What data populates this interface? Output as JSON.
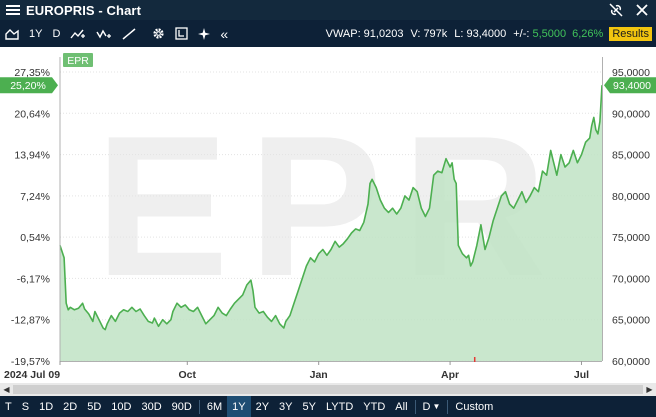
{
  "window": {
    "title": "EUROPRIS - Chart"
  },
  "toolbar": {
    "period_label": "1Y",
    "interval_label": "D",
    "stats": {
      "vwap_label": "VWAP:",
      "vwap_value": "91,0203",
      "volume_label": "V:",
      "volume_value": "797k",
      "last_label": "L:",
      "last_value": "93,4000",
      "change_label": "+/-:",
      "change_value": "5,5000",
      "change_pct": "6,26%",
      "results_label": "Results"
    }
  },
  "chart_data": {
    "type": "area",
    "series_badge": "EPR",
    "watermark": "EPR",
    "left_axis_ticks": [
      "27,35%",
      "20,64%",
      "13,94%",
      "7,24%",
      "0,54%",
      "-6,17%",
      "-12,87%",
      "-19,57%"
    ],
    "right_axis_ticks": [
      "95,0000",
      "90,0000",
      "85,0000",
      "80,0000",
      "75,0000",
      "70,0000",
      "65,0000",
      "60,0000"
    ],
    "ylim": [
      60,
      95
    ],
    "x_labels": [
      "2024 Jul 09",
      "Oct",
      "Jan",
      "Apr",
      "Jul"
    ],
    "current_pct_label": "25,20%",
    "current_price_label": "93,4000",
    "current_price": 93.4,
    "colors": {
      "line": "#4caf50",
      "fill": "#bfe3c4",
      "marker": "#4caf50"
    },
    "price_points": [
      [
        0,
        74.0
      ],
      [
        2,
        72.5
      ],
      [
        3,
        67.0
      ],
      [
        4,
        66.2
      ],
      [
        5,
        66.5
      ],
      [
        7,
        66.2
      ],
      [
        9,
        66.4
      ],
      [
        11,
        67.0
      ],
      [
        12,
        66.3
      ],
      [
        14,
        65.7
      ],
      [
        16,
        64.8
      ],
      [
        17,
        66.0
      ],
      [
        19,
        65.0
      ],
      [
        21,
        64.0
      ],
      [
        22,
        63.8
      ],
      [
        23,
        64.5
      ],
      [
        25,
        65.5
      ],
      [
        27,
        64.8
      ],
      [
        29,
        65.8
      ],
      [
        31,
        66.2
      ],
      [
        33,
        66.0
      ],
      [
        35,
        66.5
      ],
      [
        37,
        66.0
      ],
      [
        39,
        66.3
      ],
      [
        41,
        65.5
      ],
      [
        43,
        64.8
      ],
      [
        45,
        64.6
      ],
      [
        46,
        65.2
      ],
      [
        48,
        64.2
      ],
      [
        50,
        65.0
      ],
      [
        52,
        64.5
      ],
      [
        54,
        65.0
      ],
      [
        55,
        66.0
      ],
      [
        57,
        67.0
      ],
      [
        59,
        66.5
      ],
      [
        61,
        66.8
      ],
      [
        63,
        66.2
      ],
      [
        65,
        66.0
      ],
      [
        67,
        66.5
      ],
      [
        69,
        65.5
      ],
      [
        71,
        64.5
      ],
      [
        73,
        65.0
      ],
      [
        75,
        65.5
      ],
      [
        77,
        66.5
      ],
      [
        79,
        65.8
      ],
      [
        81,
        65.5
      ],
      [
        83,
        66.3
      ],
      [
        85,
        67.0
      ],
      [
        87,
        67.5
      ],
      [
        89,
        68.0
      ],
      [
        91,
        69.2
      ],
      [
        93,
        69.8
      ],
      [
        94,
        68.5
      ],
      [
        95,
        66.5
      ],
      [
        97,
        65.8
      ],
      [
        99,
        66.0
      ],
      [
        101,
        65.3
      ],
      [
        103,
        64.8
      ],
      [
        105,
        65.5
      ],
      [
        107,
        64.5
      ],
      [
        109,
        64.0
      ],
      [
        110,
        64.8
      ],
      [
        112,
        65.5
      ],
      [
        114,
        67.0
      ],
      [
        116,
        68.5
      ],
      [
        118,
        70.0
      ],
      [
        120,
        71.5
      ],
      [
        122,
        72.5
      ],
      [
        124,
        72.0
      ],
      [
        126,
        73.0
      ],
      [
        128,
        73.5
      ],
      [
        130,
        72.8
      ],
      [
        132,
        73.5
      ],
      [
        134,
        74.5
      ],
      [
        136,
        73.8
      ],
      [
        138,
        74.2
      ],
      [
        140,
        74.8
      ],
      [
        142,
        75.5
      ],
      [
        144,
        76.0
      ],
      [
        146,
        75.8
      ],
      [
        148,
        76.8
      ],
      [
        150,
        79.0
      ],
      [
        151,
        81.5
      ],
      [
        152,
        82.0
      ],
      [
        154,
        81.0
      ],
      [
        156,
        79.5
      ],
      [
        158,
        78.5
      ],
      [
        160,
        78.0
      ],
      [
        162,
        78.5
      ],
      [
        164,
        77.8
      ],
      [
        166,
        78.5
      ],
      [
        168,
        80.0
      ],
      [
        170,
        79.5
      ],
      [
        172,
        81.0
      ],
      [
        174,
        80.5
      ],
      [
        176,
        78.5
      ],
      [
        178,
        77.5
      ],
      [
        180,
        78.5
      ],
      [
        181,
        80.5
      ],
      [
        182,
        82.5
      ],
      [
        184,
        83.0
      ],
      [
        186,
        82.8
      ],
      [
        188,
        84.5
      ],
      [
        190,
        83.5
      ],
      [
        191,
        84.0
      ],
      [
        192,
        82.0
      ],
      [
        193,
        81.5
      ],
      [
        194,
        74.0
      ],
      [
        196,
        73.0
      ],
      [
        198,
        72.5
      ],
      [
        199,
        72.8
      ],
      [
        200,
        71.5
      ],
      [
        201,
        72.0
      ],
      [
        203,
        74.0
      ],
      [
        205,
        76.5
      ],
      [
        207,
        73.5
      ],
      [
        209,
        75.0
      ],
      [
        211,
        77.0
      ],
      [
        213,
        78.5
      ],
      [
        215,
        80.0
      ],
      [
        217,
        80.5
      ],
      [
        219,
        79.0
      ],
      [
        221,
        78.5
      ],
      [
        223,
        79.5
      ],
      [
        225,
        80.5
      ],
      [
        227,
        79.2
      ],
      [
        229,
        80.0
      ],
      [
        231,
        81.0
      ],
      [
        233,
        80.5
      ],
      [
        235,
        83.0
      ],
      [
        237,
        82.5
      ],
      [
        239,
        85.5
      ],
      [
        240,
        84.5
      ],
      [
        242,
        82.5
      ],
      [
        244,
        85.0
      ],
      [
        246,
        83.5
      ],
      [
        248,
        84.0
      ],
      [
        250,
        85.5
      ],
      [
        252,
        84.0
      ],
      [
        254,
        85.0
      ],
      [
        256,
        86.5
      ],
      [
        258,
        87.0
      ],
      [
        259,
        88.5
      ],
      [
        260,
        89.5
      ],
      [
        261,
        88.0
      ],
      [
        262,
        87.5
      ],
      [
        263,
        89.0
      ],
      [
        264,
        93.4
      ]
    ],
    "x_span": [
      0,
      264
    ],
    "month_ticks": [
      {
        "label": "2024 Jul 09",
        "x": 0
      },
      {
        "label": "Oct",
        "x": 62
      },
      {
        "label": "Jan",
        "x": 126
      },
      {
        "label": "Apr",
        "x": 190
      },
      {
        "label": "Jul",
        "x": 254
      }
    ]
  },
  "periodbar": {
    "items": [
      "T",
      "S",
      "1D",
      "2D",
      "5D",
      "10D",
      "30D",
      "90D",
      "6M",
      "1Y",
      "2Y",
      "3Y",
      "5Y",
      "LYTD",
      "YTD",
      "All"
    ],
    "active": "1Y",
    "interval_dropdown": "D",
    "custom_label": "Custom"
  }
}
